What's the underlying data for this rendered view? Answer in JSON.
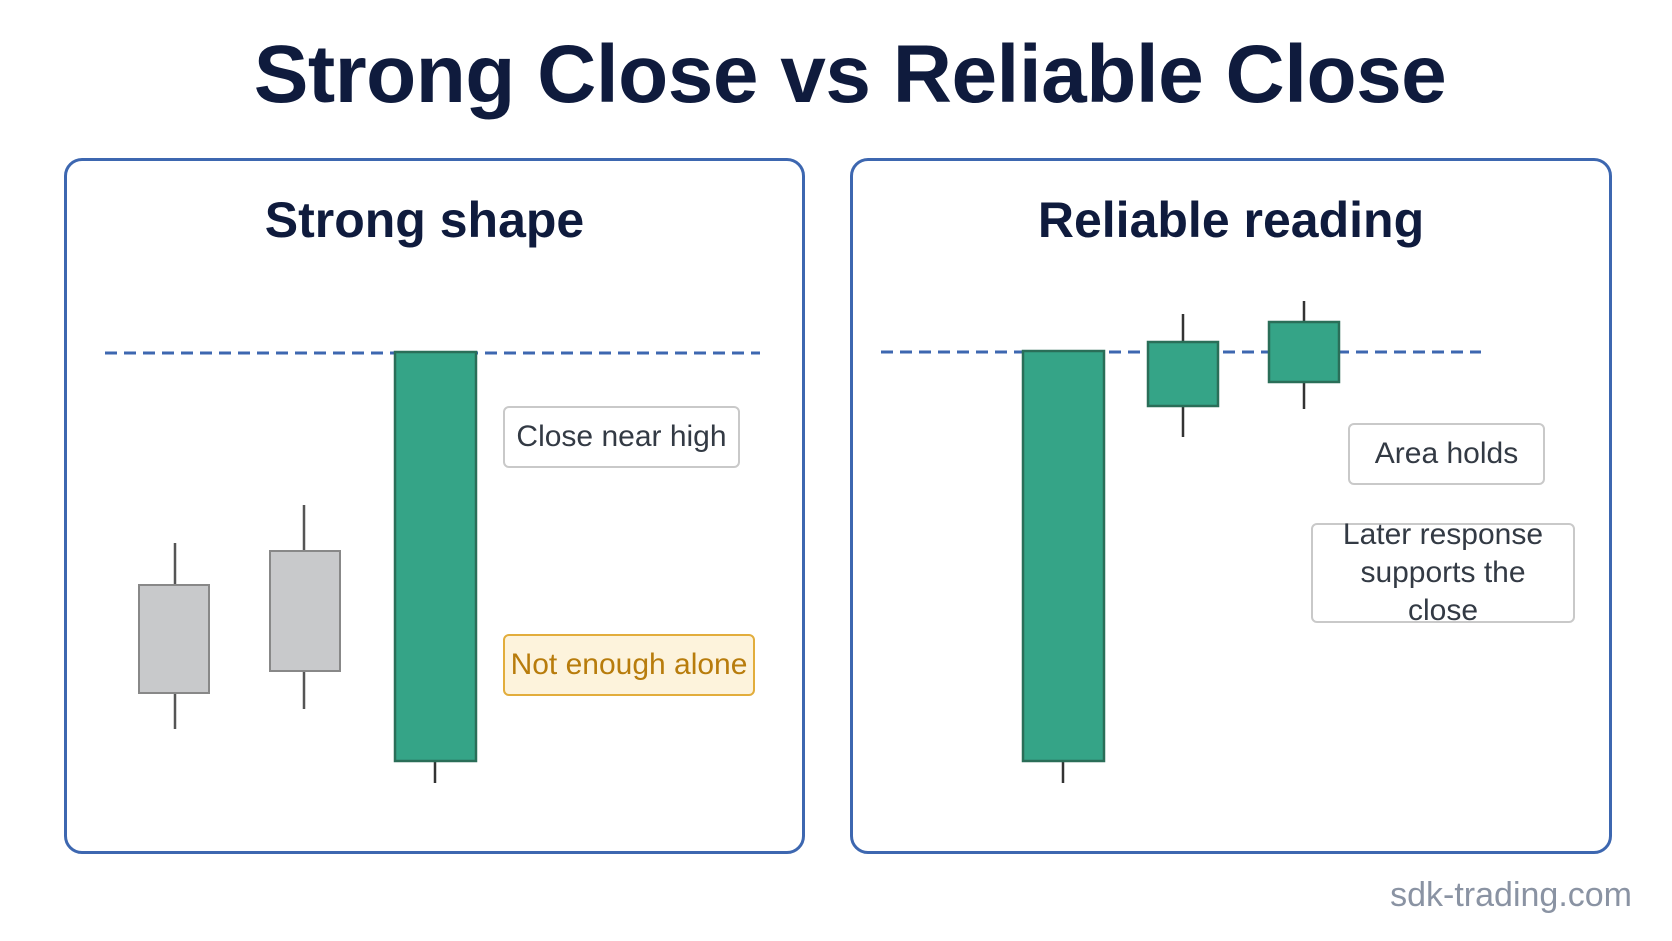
{
  "title": "Strong Close vs Reliable Close",
  "left_panel": {
    "title": "Strong shape",
    "labels": {
      "close_near_high": "Close near high",
      "not_enough_alone": "Not enough alone"
    }
  },
  "right_panel": {
    "title": "Reliable reading",
    "labels": {
      "area_holds": "Area holds",
      "later_response": "Later response supports the close"
    }
  },
  "colors": {
    "bullish": "#35a487",
    "neutral": "#c8c9cb",
    "reference_line": "#3d67b0",
    "panel_border": "#3d67b0"
  },
  "watermark": "sdk-trading.com"
}
